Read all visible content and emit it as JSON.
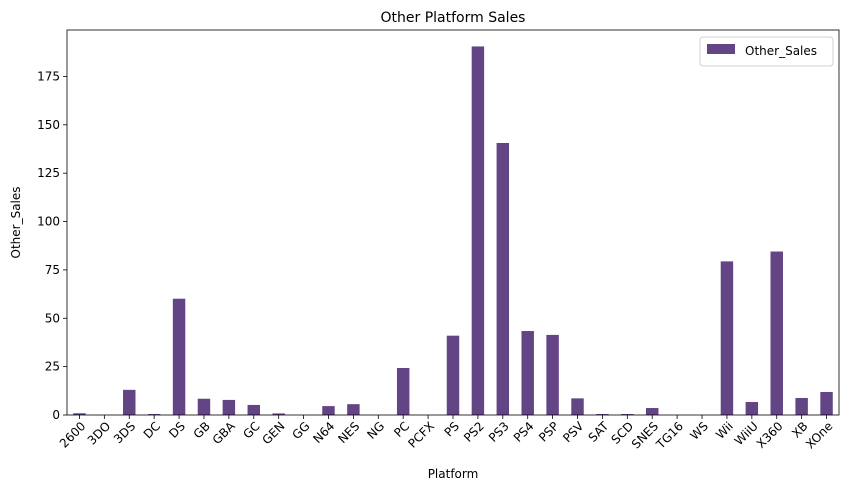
{
  "chart_data": {
    "type": "bar",
    "title": "Other Platform Sales",
    "xlabel": "Platform",
    "ylabel": "Other_Sales",
    "ylim": [
      0,
      199
    ],
    "yticks": [
      0,
      25,
      50,
      75,
      100,
      125,
      150,
      175
    ],
    "grid": false,
    "legend_position": "top-right",
    "bar_color": "#634485",
    "categories": [
      "2600",
      "3DO",
      "3DS",
      "DC",
      "DS",
      "GB",
      "GBA",
      "GC",
      "GEN",
      "GG",
      "N64",
      "NES",
      "NG",
      "PC",
      "PCFX",
      "PS",
      "PS2",
      "PS3",
      "PS4",
      "PSP",
      "PSV",
      "SAT",
      "SCD",
      "SNES",
      "TG16",
      "WS",
      "Wii",
      "WiiU",
      "X360",
      "XB",
      "XOne"
    ],
    "series": [
      {
        "name": "Other_Sales",
        "values": [
          0.9,
          0.0,
          13.0,
          0.5,
          60.1,
          8.4,
          7.8,
          5.2,
          0.8,
          0.0,
          4.6,
          5.6,
          0.0,
          24.3,
          0.0,
          41.0,
          190.5,
          140.6,
          43.4,
          41.4,
          8.6,
          0.5,
          0.5,
          3.6,
          0.0,
          0.0,
          79.4,
          6.7,
          84.5,
          8.8,
          11.9
        ]
      }
    ]
  }
}
